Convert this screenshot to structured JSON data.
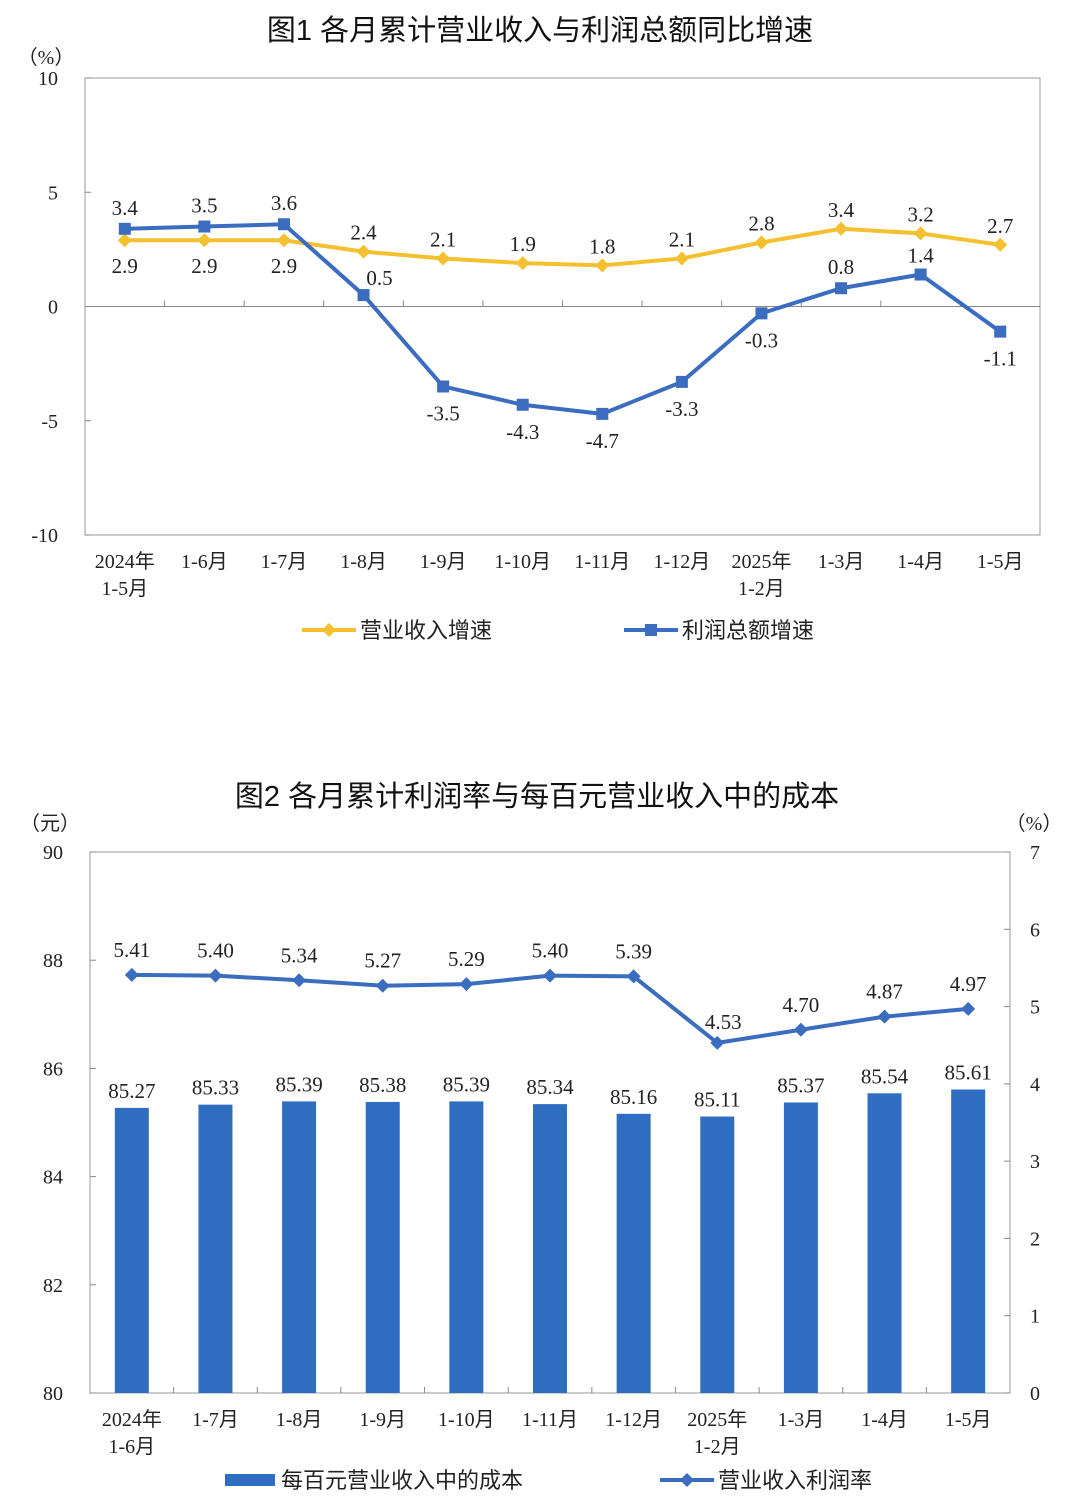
{
  "chart_data": [
    {
      "type": "line",
      "title": "图1  各月累计营业收入与利润总额同比增速",
      "yunit": "（%）",
      "ylim": [
        -10,
        10
      ],
      "yticks": [
        10,
        5,
        0,
        -5,
        -10
      ],
      "categories": [
        "2024年\n1-5月",
        "1-6月",
        "1-7月",
        "1-8月",
        "1-9月",
        "1-10月",
        "1-11月",
        "1-12月",
        "2025年\n1-2月",
        "1-3月",
        "1-4月",
        "1-5月"
      ],
      "series": [
        {
          "name": "营业收入增速",
          "color": "#F5C02F",
          "marker": "diamond",
          "values": [
            2.9,
            2.9,
            2.9,
            2.4,
            2.1,
            1.9,
            1.8,
            2.1,
            2.8,
            3.4,
            3.2,
            2.7
          ]
        },
        {
          "name": "利润总额增速",
          "color": "#3A6CC0",
          "marker": "square",
          "values": [
            3.4,
            3.5,
            3.6,
            0.5,
            -3.5,
            -4.3,
            -4.7,
            -3.3,
            -0.3,
            0.8,
            1.4,
            -1.1
          ]
        }
      ],
      "legend": "bottom",
      "grid": false
    },
    {
      "type": "bar+line",
      "title": "图2  各月累计利润率与每百元营业收入中的成本",
      "left_unit": "（元）",
      "right_unit": "（%）",
      "ylim_left": [
        80,
        90
      ],
      "yticks_left": [
        90,
        88,
        86,
        84,
        82,
        80
      ],
      "ylim_right": [
        0,
        7
      ],
      "yticks_right": [
        7,
        6,
        5,
        4,
        3,
        2,
        1,
        0
      ],
      "categories": [
        "2024年\n1-6月",
        "1-7月",
        "1-8月",
        "1-9月",
        "1-10月",
        "1-11月",
        "1-12月",
        "2025年\n1-2月",
        "1-3月",
        "1-4月",
        "1-5月"
      ],
      "bars": {
        "name": "每百元营业收入中的成本",
        "color": "#2F6DC0",
        "axis": "left",
        "values": [
          85.27,
          85.33,
          85.39,
          85.38,
          85.39,
          85.34,
          85.16,
          85.11,
          85.37,
          85.54,
          85.61
        ]
      },
      "line": {
        "name": "营业收入利润率",
        "color": "#3A6CC0",
        "marker": "diamond",
        "axis": "right",
        "values": [
          5.41,
          5.4,
          5.34,
          5.27,
          5.29,
          5.4,
          5.39,
          4.53,
          4.7,
          4.87,
          4.97
        ]
      },
      "legend": "bottom",
      "grid": false
    }
  ]
}
